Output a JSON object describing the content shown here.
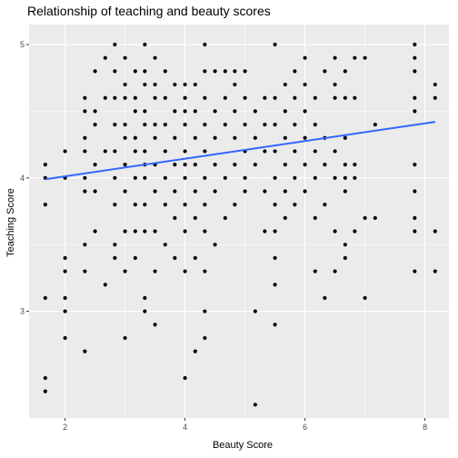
{
  "chart_data": {
    "type": "scatter",
    "title": "Relationship of teaching and beauty scores",
    "xlabel": "Beauty Score",
    "ylabel": "Teaching Score",
    "xlim": [
      1.4,
      8.4
    ],
    "ylim": [
      2.2,
      5.15
    ],
    "x_ticks": [
      2,
      4,
      6,
      8
    ],
    "y_ticks": [
      3,
      4,
      5
    ],
    "grid": true,
    "legend": "none",
    "colors": {
      "points": "#000000",
      "trend_line": "#3366ff",
      "panel": "#ebebeb",
      "grid": "#ffffff"
    },
    "trend_line": {
      "x": [
        1.67,
        8.17
      ],
      "y": [
        3.99,
        4.42
      ]
    },
    "points": [
      {
        "x": 1.67,
        "y": 2.4
      },
      {
        "x": 1.67,
        "y": 2.5
      },
      {
        "x": 1.67,
        "y": 3.1
      },
      {
        "x": 1.67,
        "y": 3.8
      },
      {
        "x": 1.67,
        "y": 4.0
      },
      {
        "x": 1.67,
        "y": 4.1
      },
      {
        "x": 2.0,
        "y": 2.8
      },
      {
        "x": 2.0,
        "y": 3.0
      },
      {
        "x": 2.0,
        "y": 3.1
      },
      {
        "x": 2.0,
        "y": 3.3
      },
      {
        "x": 2.0,
        "y": 3.4
      },
      {
        "x": 2.0,
        "y": 4.0
      },
      {
        "x": 2.0,
        "y": 4.2
      },
      {
        "x": 2.33,
        "y": 2.7
      },
      {
        "x": 2.33,
        "y": 3.3
      },
      {
        "x": 2.33,
        "y": 3.5
      },
      {
        "x": 2.33,
        "y": 3.9
      },
      {
        "x": 2.33,
        "y": 4.0
      },
      {
        "x": 2.33,
        "y": 4.2
      },
      {
        "x": 2.33,
        "y": 4.3
      },
      {
        "x": 2.33,
        "y": 4.5
      },
      {
        "x": 2.33,
        "y": 4.6
      },
      {
        "x": 2.5,
        "y": 3.6
      },
      {
        "x": 2.5,
        "y": 3.9
      },
      {
        "x": 2.5,
        "y": 4.1
      },
      {
        "x": 2.5,
        "y": 4.4
      },
      {
        "x": 2.5,
        "y": 4.5
      },
      {
        "x": 2.5,
        "y": 4.8
      },
      {
        "x": 2.67,
        "y": 3.2
      },
      {
        "x": 2.67,
        "y": 4.2
      },
      {
        "x": 2.67,
        "y": 4.6
      },
      {
        "x": 2.67,
        "y": 4.9
      },
      {
        "x": 2.83,
        "y": 3.4
      },
      {
        "x": 2.83,
        "y": 3.5
      },
      {
        "x": 2.83,
        "y": 3.8
      },
      {
        "x": 2.83,
        "y": 4.0
      },
      {
        "x": 2.83,
        "y": 4.2
      },
      {
        "x": 2.83,
        "y": 4.4
      },
      {
        "x": 2.83,
        "y": 4.6
      },
      {
        "x": 2.83,
        "y": 4.8
      },
      {
        "x": 2.83,
        "y": 5.0
      },
      {
        "x": 3.0,
        "y": 2.8
      },
      {
        "x": 3.0,
        "y": 3.3
      },
      {
        "x": 3.0,
        "y": 3.6
      },
      {
        "x": 3.0,
        "y": 3.9
      },
      {
        "x": 3.0,
        "y": 4.1
      },
      {
        "x": 3.0,
        "y": 4.3
      },
      {
        "x": 3.0,
        "y": 4.4
      },
      {
        "x": 3.0,
        "y": 4.6
      },
      {
        "x": 3.0,
        "y": 4.7
      },
      {
        "x": 3.0,
        "y": 4.9
      },
      {
        "x": 3.17,
        "y": 3.4
      },
      {
        "x": 3.17,
        "y": 3.6
      },
      {
        "x": 3.17,
        "y": 3.8
      },
      {
        "x": 3.17,
        "y": 4.0
      },
      {
        "x": 3.17,
        "y": 4.2
      },
      {
        "x": 3.17,
        "y": 4.3
      },
      {
        "x": 3.17,
        "y": 4.5
      },
      {
        "x": 3.17,
        "y": 4.6
      },
      {
        "x": 3.17,
        "y": 4.8
      },
      {
        "x": 3.33,
        "y": 3.0
      },
      {
        "x": 3.33,
        "y": 3.1
      },
      {
        "x": 3.33,
        "y": 3.6
      },
      {
        "x": 3.33,
        "y": 3.8
      },
      {
        "x": 3.33,
        "y": 4.0
      },
      {
        "x": 3.33,
        "y": 4.1
      },
      {
        "x": 3.33,
        "y": 4.2
      },
      {
        "x": 3.33,
        "y": 4.4
      },
      {
        "x": 3.33,
        "y": 4.5
      },
      {
        "x": 3.33,
        "y": 4.7
      },
      {
        "x": 3.33,
        "y": 4.8
      },
      {
        "x": 3.33,
        "y": 5.0
      },
      {
        "x": 3.5,
        "y": 2.9
      },
      {
        "x": 3.5,
        "y": 3.3
      },
      {
        "x": 3.5,
        "y": 3.6
      },
      {
        "x": 3.5,
        "y": 3.9
      },
      {
        "x": 3.5,
        "y": 4.1
      },
      {
        "x": 3.5,
        "y": 4.3
      },
      {
        "x": 3.5,
        "y": 4.4
      },
      {
        "x": 3.5,
        "y": 4.6
      },
      {
        "x": 3.5,
        "y": 4.7
      },
      {
        "x": 3.5,
        "y": 4.9
      },
      {
        "x": 3.67,
        "y": 3.5
      },
      {
        "x": 3.67,
        "y": 3.8
      },
      {
        "x": 3.67,
        "y": 4.0
      },
      {
        "x": 3.67,
        "y": 4.2
      },
      {
        "x": 3.67,
        "y": 4.4
      },
      {
        "x": 3.67,
        "y": 4.6
      },
      {
        "x": 3.67,
        "y": 4.8
      },
      {
        "x": 3.83,
        "y": 3.4
      },
      {
        "x": 3.83,
        "y": 3.7
      },
      {
        "x": 3.83,
        "y": 3.9
      },
      {
        "x": 3.83,
        "y": 4.1
      },
      {
        "x": 3.83,
        "y": 4.3
      },
      {
        "x": 3.83,
        "y": 4.5
      },
      {
        "x": 3.83,
        "y": 4.7
      },
      {
        "x": 4.0,
        "y": 2.5
      },
      {
        "x": 4.0,
        "y": 3.3
      },
      {
        "x": 4.0,
        "y": 3.6
      },
      {
        "x": 4.0,
        "y": 3.8
      },
      {
        "x": 4.0,
        "y": 4.0
      },
      {
        "x": 4.0,
        "y": 4.1
      },
      {
        "x": 4.0,
        "y": 4.2
      },
      {
        "x": 4.0,
        "y": 4.4
      },
      {
        "x": 4.0,
        "y": 4.5
      },
      {
        "x": 4.0,
        "y": 4.6
      },
      {
        "x": 4.0,
        "y": 4.7
      },
      {
        "x": 4.17,
        "y": 2.7
      },
      {
        "x": 4.17,
        "y": 3.4
      },
      {
        "x": 4.17,
        "y": 3.7
      },
      {
        "x": 4.17,
        "y": 3.9
      },
      {
        "x": 4.17,
        "y": 4.1
      },
      {
        "x": 4.17,
        "y": 4.3
      },
      {
        "x": 4.17,
        "y": 4.5
      },
      {
        "x": 4.17,
        "y": 4.7
      },
      {
        "x": 4.33,
        "y": 2.8
      },
      {
        "x": 4.33,
        "y": 3.0
      },
      {
        "x": 4.33,
        "y": 3.3
      },
      {
        "x": 4.33,
        "y": 3.6
      },
      {
        "x": 4.33,
        "y": 3.8
      },
      {
        "x": 4.33,
        "y": 4.0
      },
      {
        "x": 4.33,
        "y": 4.2
      },
      {
        "x": 4.33,
        "y": 4.4
      },
      {
        "x": 4.33,
        "y": 4.6
      },
      {
        "x": 4.33,
        "y": 4.8
      },
      {
        "x": 4.33,
        "y": 5.0
      },
      {
        "x": 4.5,
        "y": 3.5
      },
      {
        "x": 4.5,
        "y": 3.9
      },
      {
        "x": 4.5,
        "y": 4.1
      },
      {
        "x": 4.5,
        "y": 4.3
      },
      {
        "x": 4.5,
        "y": 4.5
      },
      {
        "x": 4.5,
        "y": 4.8
      },
      {
        "x": 4.67,
        "y": 3.7
      },
      {
        "x": 4.67,
        "y": 4.0
      },
      {
        "x": 4.67,
        "y": 4.4
      },
      {
        "x": 4.67,
        "y": 4.6
      },
      {
        "x": 4.67,
        "y": 4.8
      },
      {
        "x": 4.83,
        "y": 3.8
      },
      {
        "x": 4.83,
        "y": 4.1
      },
      {
        "x": 4.83,
        "y": 4.3
      },
      {
        "x": 4.83,
        "y": 4.5
      },
      {
        "x": 4.83,
        "y": 4.7
      },
      {
        "x": 4.83,
        "y": 4.8
      },
      {
        "x": 5.0,
        "y": 3.9
      },
      {
        "x": 5.0,
        "y": 4.0
      },
      {
        "x": 5.0,
        "y": 4.2
      },
      {
        "x": 5.0,
        "y": 4.4
      },
      {
        "x": 5.0,
        "y": 4.6
      },
      {
        "x": 5.0,
        "y": 4.8
      },
      {
        "x": 5.17,
        "y": 2.3
      },
      {
        "x": 5.17,
        "y": 3.0
      },
      {
        "x": 5.17,
        "y": 4.1
      },
      {
        "x": 5.17,
        "y": 4.3
      },
      {
        "x": 5.17,
        "y": 4.5
      },
      {
        "x": 5.33,
        "y": 3.6
      },
      {
        "x": 5.33,
        "y": 3.9
      },
      {
        "x": 5.33,
        "y": 4.2
      },
      {
        "x": 5.33,
        "y": 4.4
      },
      {
        "x": 5.33,
        "y": 4.6
      },
      {
        "x": 5.5,
        "y": 2.9
      },
      {
        "x": 5.5,
        "y": 3.2
      },
      {
        "x": 5.5,
        "y": 3.4
      },
      {
        "x": 5.5,
        "y": 3.6
      },
      {
        "x": 5.5,
        "y": 3.8
      },
      {
        "x": 5.5,
        "y": 4.0
      },
      {
        "x": 5.5,
        "y": 4.2
      },
      {
        "x": 5.5,
        "y": 4.4
      },
      {
        "x": 5.5,
        "y": 4.6
      },
      {
        "x": 5.5,
        "y": 5.0
      },
      {
        "x": 5.67,
        "y": 3.7
      },
      {
        "x": 5.67,
        "y": 3.9
      },
      {
        "x": 5.67,
        "y": 4.1
      },
      {
        "x": 5.67,
        "y": 4.3
      },
      {
        "x": 5.67,
        "y": 4.5
      },
      {
        "x": 5.67,
        "y": 4.7
      },
      {
        "x": 5.83,
        "y": 3.8
      },
      {
        "x": 5.83,
        "y": 4.0
      },
      {
        "x": 5.83,
        "y": 4.2
      },
      {
        "x": 5.83,
        "y": 4.4
      },
      {
        "x": 5.83,
        "y": 4.6
      },
      {
        "x": 5.83,
        "y": 4.8
      },
      {
        "x": 6.0,
        "y": 3.9
      },
      {
        "x": 6.0,
        "y": 4.1
      },
      {
        "x": 6.0,
        "y": 4.3
      },
      {
        "x": 6.0,
        "y": 4.5
      },
      {
        "x": 6.0,
        "y": 4.7
      },
      {
        "x": 6.0,
        "y": 4.9
      },
      {
        "x": 6.17,
        "y": 3.3
      },
      {
        "x": 6.17,
        "y": 3.7
      },
      {
        "x": 6.17,
        "y": 4.0
      },
      {
        "x": 6.17,
        "y": 4.2
      },
      {
        "x": 6.17,
        "y": 4.4
      },
      {
        "x": 6.17,
        "y": 4.6
      },
      {
        "x": 6.33,
        "y": 3.1
      },
      {
        "x": 6.33,
        "y": 3.8
      },
      {
        "x": 6.33,
        "y": 4.1
      },
      {
        "x": 6.33,
        "y": 4.3
      },
      {
        "x": 6.33,
        "y": 4.8
      },
      {
        "x": 6.5,
        "y": 3.3
      },
      {
        "x": 6.5,
        "y": 3.6
      },
      {
        "x": 6.5,
        "y": 4.0
      },
      {
        "x": 6.5,
        "y": 4.2
      },
      {
        "x": 6.5,
        "y": 4.6
      },
      {
        "x": 6.5,
        "y": 4.7
      },
      {
        "x": 6.5,
        "y": 4.9
      },
      {
        "x": 6.67,
        "y": 3.4
      },
      {
        "x": 6.67,
        "y": 3.5
      },
      {
        "x": 6.67,
        "y": 3.9
      },
      {
        "x": 6.67,
        "y": 4.0
      },
      {
        "x": 6.67,
        "y": 4.1
      },
      {
        "x": 6.67,
        "y": 4.3
      },
      {
        "x": 6.67,
        "y": 4.6
      },
      {
        "x": 6.67,
        "y": 4.8
      },
      {
        "x": 6.83,
        "y": 3.6
      },
      {
        "x": 6.83,
        "y": 4.0
      },
      {
        "x": 6.83,
        "y": 4.1
      },
      {
        "x": 6.83,
        "y": 4.6
      },
      {
        "x": 6.83,
        "y": 4.9
      },
      {
        "x": 7.0,
        "y": 3.1
      },
      {
        "x": 7.0,
        "y": 3.7
      },
      {
        "x": 7.0,
        "y": 4.9
      },
      {
        "x": 7.17,
        "y": 3.7
      },
      {
        "x": 7.17,
        "y": 4.4
      },
      {
        "x": 7.83,
        "y": 3.3
      },
      {
        "x": 7.83,
        "y": 3.6
      },
      {
        "x": 7.83,
        "y": 3.7
      },
      {
        "x": 7.83,
        "y": 3.9
      },
      {
        "x": 7.83,
        "y": 4.1
      },
      {
        "x": 7.83,
        "y": 4.5
      },
      {
        "x": 7.83,
        "y": 4.6
      },
      {
        "x": 7.83,
        "y": 4.8
      },
      {
        "x": 7.83,
        "y": 4.9
      },
      {
        "x": 7.83,
        "y": 5.0
      },
      {
        "x": 8.17,
        "y": 3.3
      },
      {
        "x": 8.17,
        "y": 3.6
      },
      {
        "x": 8.17,
        "y": 4.6
      },
      {
        "x": 8.17,
        "y": 4.7
      }
    ]
  }
}
